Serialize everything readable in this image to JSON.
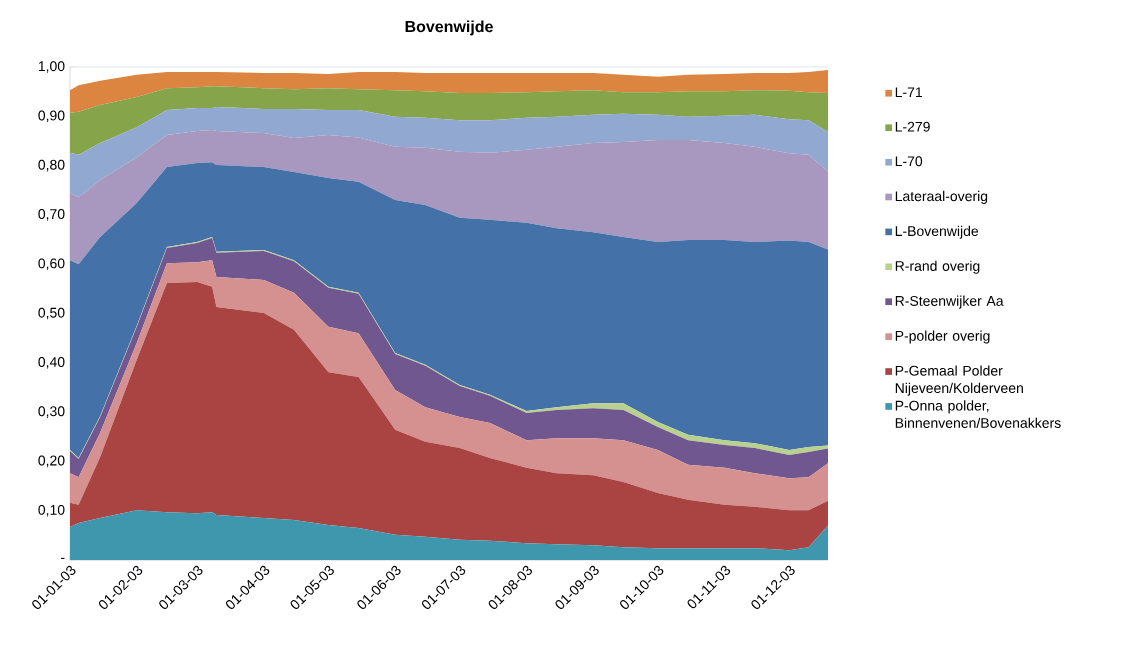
{
  "chart_data": {
    "type": "area",
    "title": "Bovenwijde",
    "stacked": true,
    "legend": "right",
    "grid": "y",
    "x": [
      "2003-01-01",
      "2003-01-05",
      "2003-01-15",
      "2003-02-01",
      "2003-02-15",
      "2003-03-01",
      "2003-03-08",
      "2003-03-10",
      "2003-04-01",
      "2003-04-15",
      "2003-05-01",
      "2003-05-15",
      "2003-06-01",
      "2003-06-15",
      "2003-07-01",
      "2003-07-15",
      "2003-08-01",
      "2003-08-15",
      "2003-09-01",
      "2003-09-15",
      "2003-10-01",
      "2003-10-15",
      "2003-11-01",
      "2003-11-15",
      "2003-12-01",
      "2003-12-10",
      "2003-12-19"
    ],
    "xlim": [
      "2003-01-01",
      "2003-12-19"
    ],
    "xticks": [
      {
        "value": "2003-01-01",
        "label": "01-01-03"
      },
      {
        "value": "2003-02-01",
        "label": "01-02-03"
      },
      {
        "value": "2003-03-01",
        "label": "01-03-03"
      },
      {
        "value": "2003-04-01",
        "label": "01-04-03"
      },
      {
        "value": "2003-05-01",
        "label": "01-05-03"
      },
      {
        "value": "2003-06-01",
        "label": "01-06-03"
      },
      {
        "value": "2003-07-01",
        "label": "01-07-03"
      },
      {
        "value": "2003-08-01",
        "label": "01-08-03"
      },
      {
        "value": "2003-09-01",
        "label": "01-09-03"
      },
      {
        "value": "2003-10-01",
        "label": "01-10-03"
      },
      {
        "value": "2003-11-01",
        "label": "01-11-03"
      },
      {
        "value": "2003-12-01",
        "label": "01-12-03"
      }
    ],
    "ylim": [
      0,
      1
    ],
    "yticks": [
      {
        "value": 0,
        "label": "-"
      },
      {
        "value": 0.1,
        "label": "0,10"
      },
      {
        "value": 0.2,
        "label": "0,20"
      },
      {
        "value": 0.3,
        "label": "0,30"
      },
      {
        "value": 0.4,
        "label": "0,40"
      },
      {
        "value": 0.5,
        "label": "0,50"
      },
      {
        "value": 0.6,
        "label": "0,60"
      },
      {
        "value": 0.7,
        "label": "0,70"
      },
      {
        "value": 0.8,
        "label": "0,80"
      },
      {
        "value": 0.9,
        "label": "0,90"
      },
      {
        "value": 1.0,
        "label": "1,00"
      }
    ],
    "series": [
      {
        "name": "P-Onna polder, Binnenvenen/Bovenakkers",
        "color": "#3f97ad",
        "values": [
          0.067,
          0.075,
          0.085,
          0.101,
          0.097,
          0.095,
          0.097,
          0.091,
          0.085,
          0.081,
          0.071,
          0.065,
          0.051,
          0.047,
          0.041,
          0.039,
          0.034,
          0.032,
          0.03,
          0.026,
          0.024,
          0.024,
          0.024,
          0.024,
          0.02,
          0.026,
          0.07
        ]
      },
      {
        "name": "P-Gemaal Polder Nijeveen/Kolderveen",
        "color": "#a94442",
        "values": [
          0.049,
          0.037,
          0.124,
          0.305,
          0.465,
          0.469,
          0.457,
          0.422,
          0.416,
          0.386,
          0.31,
          0.306,
          0.213,
          0.193,
          0.186,
          0.168,
          0.153,
          0.144,
          0.142,
          0.132,
          0.112,
          0.098,
          0.088,
          0.084,
          0.081,
          0.075,
          0.05
        ]
      },
      {
        "name": "P-polder overig",
        "color": "#d49190",
        "values": [
          0.06,
          0.056,
          0.049,
          0.034,
          0.04,
          0.04,
          0.054,
          0.061,
          0.067,
          0.075,
          0.092,
          0.089,
          0.081,
          0.07,
          0.063,
          0.071,
          0.056,
          0.071,
          0.075,
          0.085,
          0.087,
          0.071,
          0.075,
          0.068,
          0.065,
          0.067,
          0.076
        ]
      },
      {
        "name": "R-Steenwijker Aa",
        "color": "#71578f",
        "values": [
          0.045,
          0.037,
          0.032,
          0.033,
          0.031,
          0.039,
          0.045,
          0.049,
          0.059,
          0.064,
          0.079,
          0.08,
          0.073,
          0.084,
          0.063,
          0.055,
          0.055,
          0.057,
          0.061,
          0.061,
          0.047,
          0.05,
          0.046,
          0.051,
          0.047,
          0.051,
          0.03
        ]
      },
      {
        "name": "R-rand overig",
        "color": "#b9d18e",
        "values": [
          0.002,
          0.002,
          0.002,
          0.002,
          0.002,
          0.002,
          0.002,
          0.002,
          0.002,
          0.002,
          0.002,
          0.002,
          0.002,
          0.002,
          0.002,
          0.002,
          0.004,
          0.006,
          0.01,
          0.014,
          0.01,
          0.011,
          0.01,
          0.01,
          0.01,
          0.01,
          0.006
        ]
      },
      {
        "name": "L-Bovenwijde",
        "color": "#4472a8",
        "values": [
          0.385,
          0.393,
          0.363,
          0.249,
          0.162,
          0.16,
          0.152,
          0.176,
          0.168,
          0.179,
          0.221,
          0.225,
          0.31,
          0.324,
          0.339,
          0.355,
          0.382,
          0.363,
          0.347,
          0.337,
          0.365,
          0.395,
          0.406,
          0.408,
          0.425,
          0.416,
          0.398
        ]
      },
      {
        "name": "Lateraal-overig",
        "color": "#a897bf",
        "values": [
          0.136,
          0.136,
          0.116,
          0.093,
          0.065,
          0.065,
          0.065,
          0.069,
          0.069,
          0.069,
          0.087,
          0.09,
          0.108,
          0.116,
          0.134,
          0.136,
          0.148,
          0.165,
          0.181,
          0.193,
          0.207,
          0.203,
          0.197,
          0.193,
          0.177,
          0.177,
          0.158
        ]
      },
      {
        "name": "L-70",
        "color": "#91a8d0",
        "values": [
          0.082,
          0.086,
          0.075,
          0.061,
          0.051,
          0.047,
          0.045,
          0.049,
          0.049,
          0.059,
          0.051,
          0.056,
          0.061,
          0.061,
          0.064,
          0.066,
          0.065,
          0.061,
          0.057,
          0.057,
          0.051,
          0.047,
          0.055,
          0.065,
          0.069,
          0.07,
          0.08
        ]
      },
      {
        "name": "L-279",
        "color": "#86a44a",
        "values": [
          0.081,
          0.087,
          0.077,
          0.061,
          0.044,
          0.042,
          0.044,
          0.042,
          0.042,
          0.04,
          0.044,
          0.042,
          0.054,
          0.054,
          0.055,
          0.055,
          0.052,
          0.052,
          0.05,
          0.044,
          0.046,
          0.052,
          0.05,
          0.05,
          0.058,
          0.057,
          0.079
        ]
      },
      {
        "name": "L-71",
        "color": "#db8540",
        "values": [
          0.046,
          0.054,
          0.049,
          0.045,
          0.033,
          0.031,
          0.029,
          0.029,
          0.031,
          0.033,
          0.029,
          0.035,
          0.037,
          0.037,
          0.041,
          0.041,
          0.039,
          0.037,
          0.035,
          0.035,
          0.031,
          0.033,
          0.035,
          0.035,
          0.036,
          0.041,
          0.047
        ]
      }
    ]
  }
}
